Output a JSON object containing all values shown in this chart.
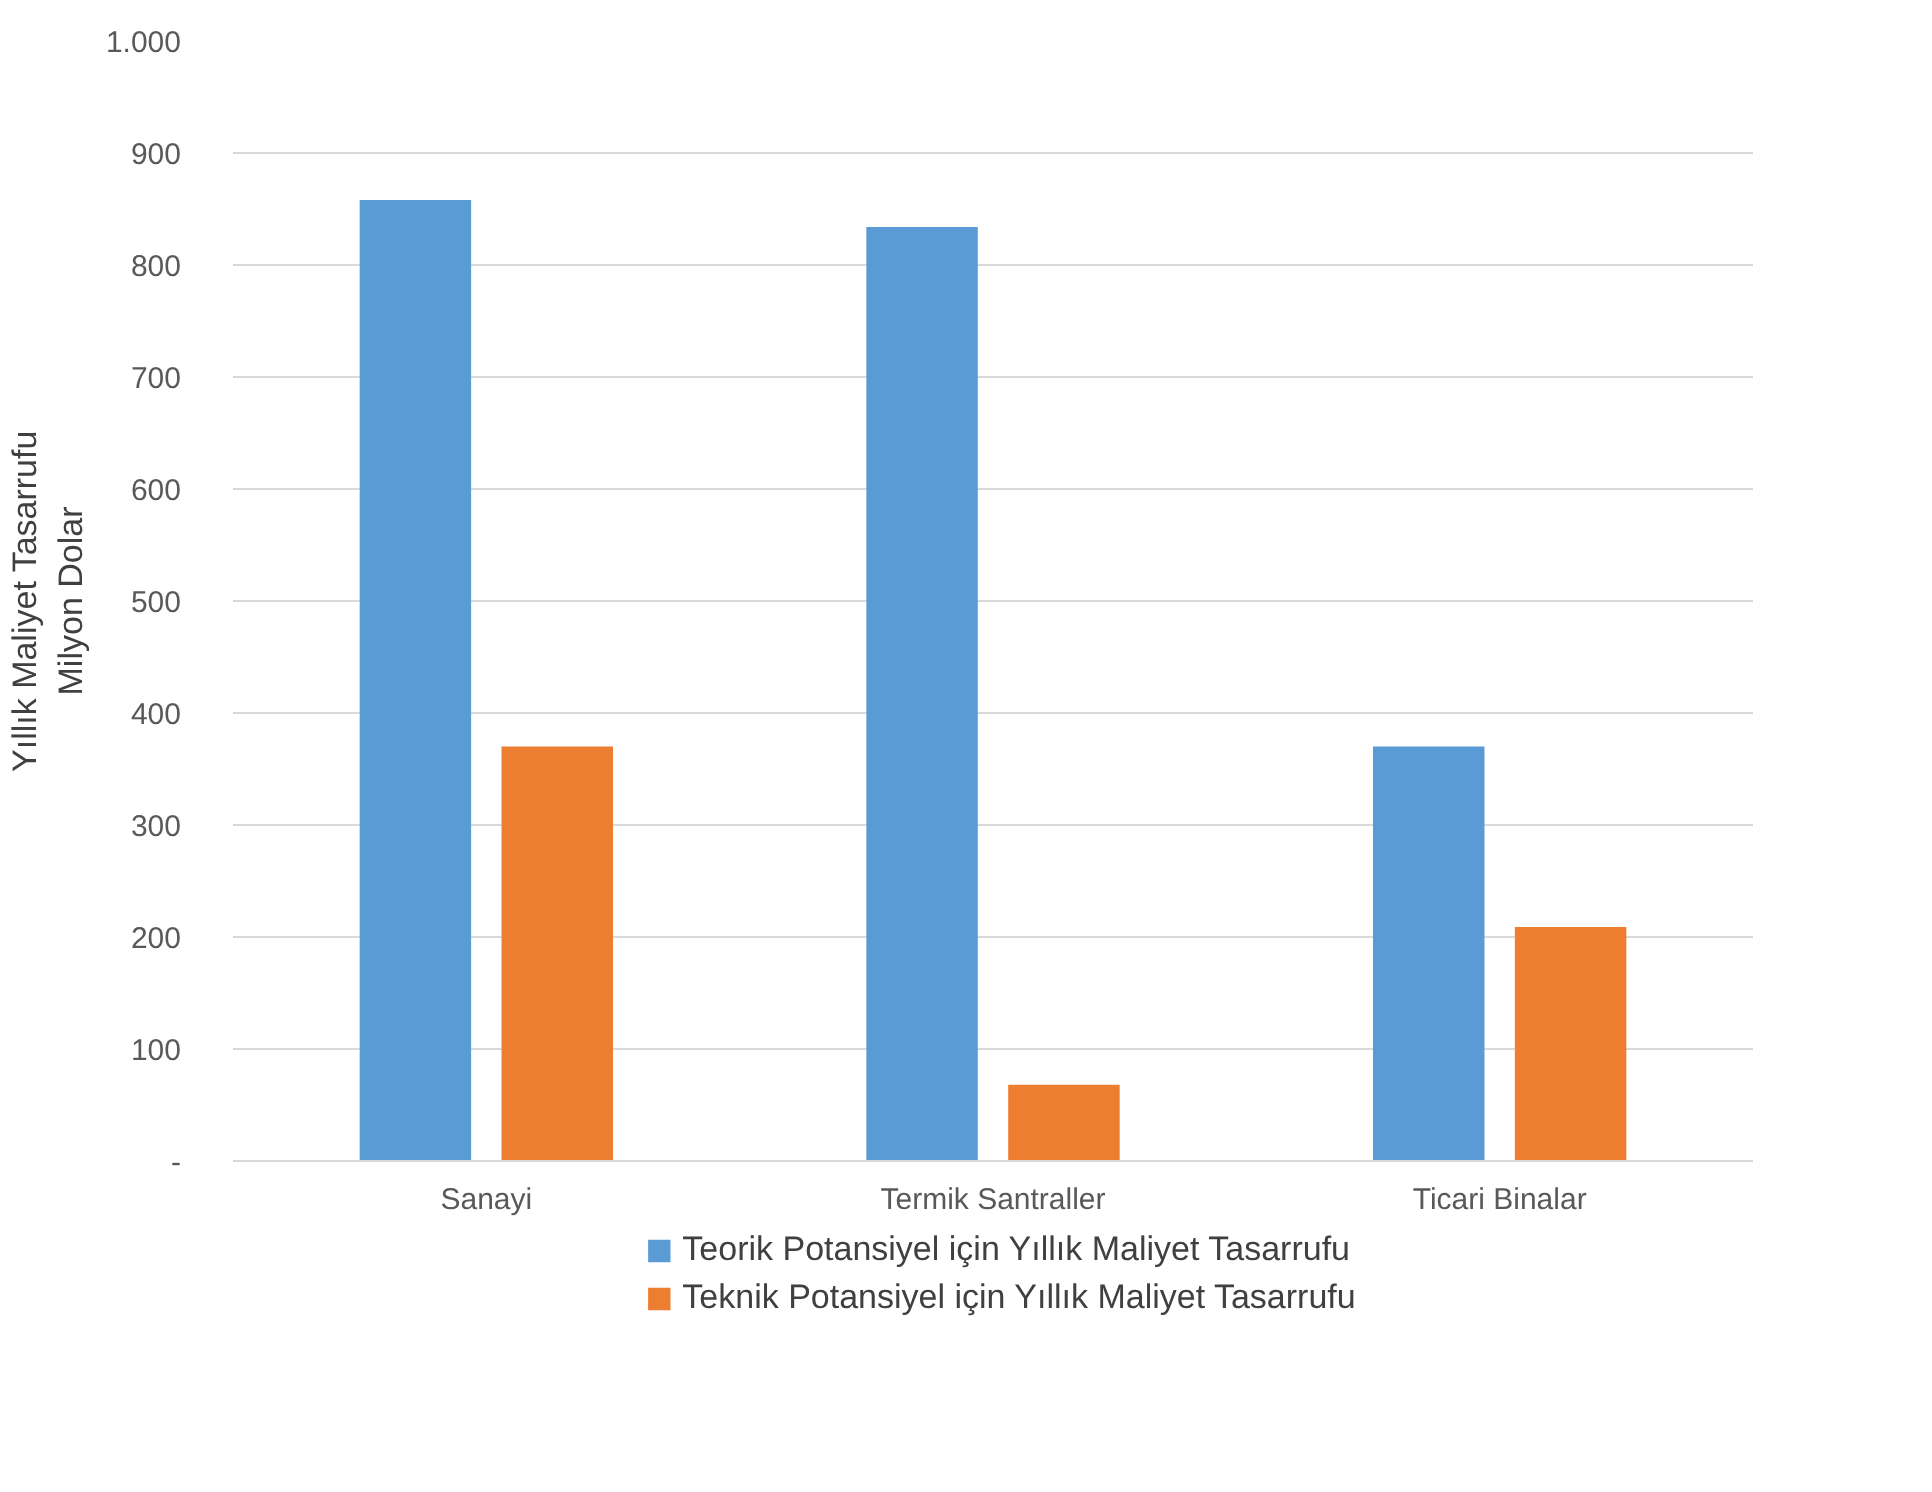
{
  "chart_data": {
    "type": "bar",
    "ylabel": "Yıllık Maliyet Tasarrufu\nMilyon Dolar",
    "categories": [
      "Sanayi",
      "Termik Santraller",
      "Ticari Binalar"
    ],
    "series": [
      {
        "name": "Teorik Potansiyel için Yıllık Maliyet Tasarrufu",
        "color": "#5b9bd5",
        "values": [
          858,
          834,
          370
        ]
      },
      {
        "name": "Teknik Potansiyel için Yıllık Maliyet Tasarrufu",
        "color": "#ed7d31",
        "values": [
          370,
          68,
          209
        ]
      }
    ],
    "ylim": [
      0,
      1000
    ],
    "yticks": [
      {
        "value": 0,
        "label": "-"
      },
      100,
      200,
      300,
      400,
      500,
      600,
      700,
      800,
      900,
      {
        "value": 1000,
        "label": "1.000"
      }
    ],
    "grid": "y",
    "legend": "bottom"
  }
}
